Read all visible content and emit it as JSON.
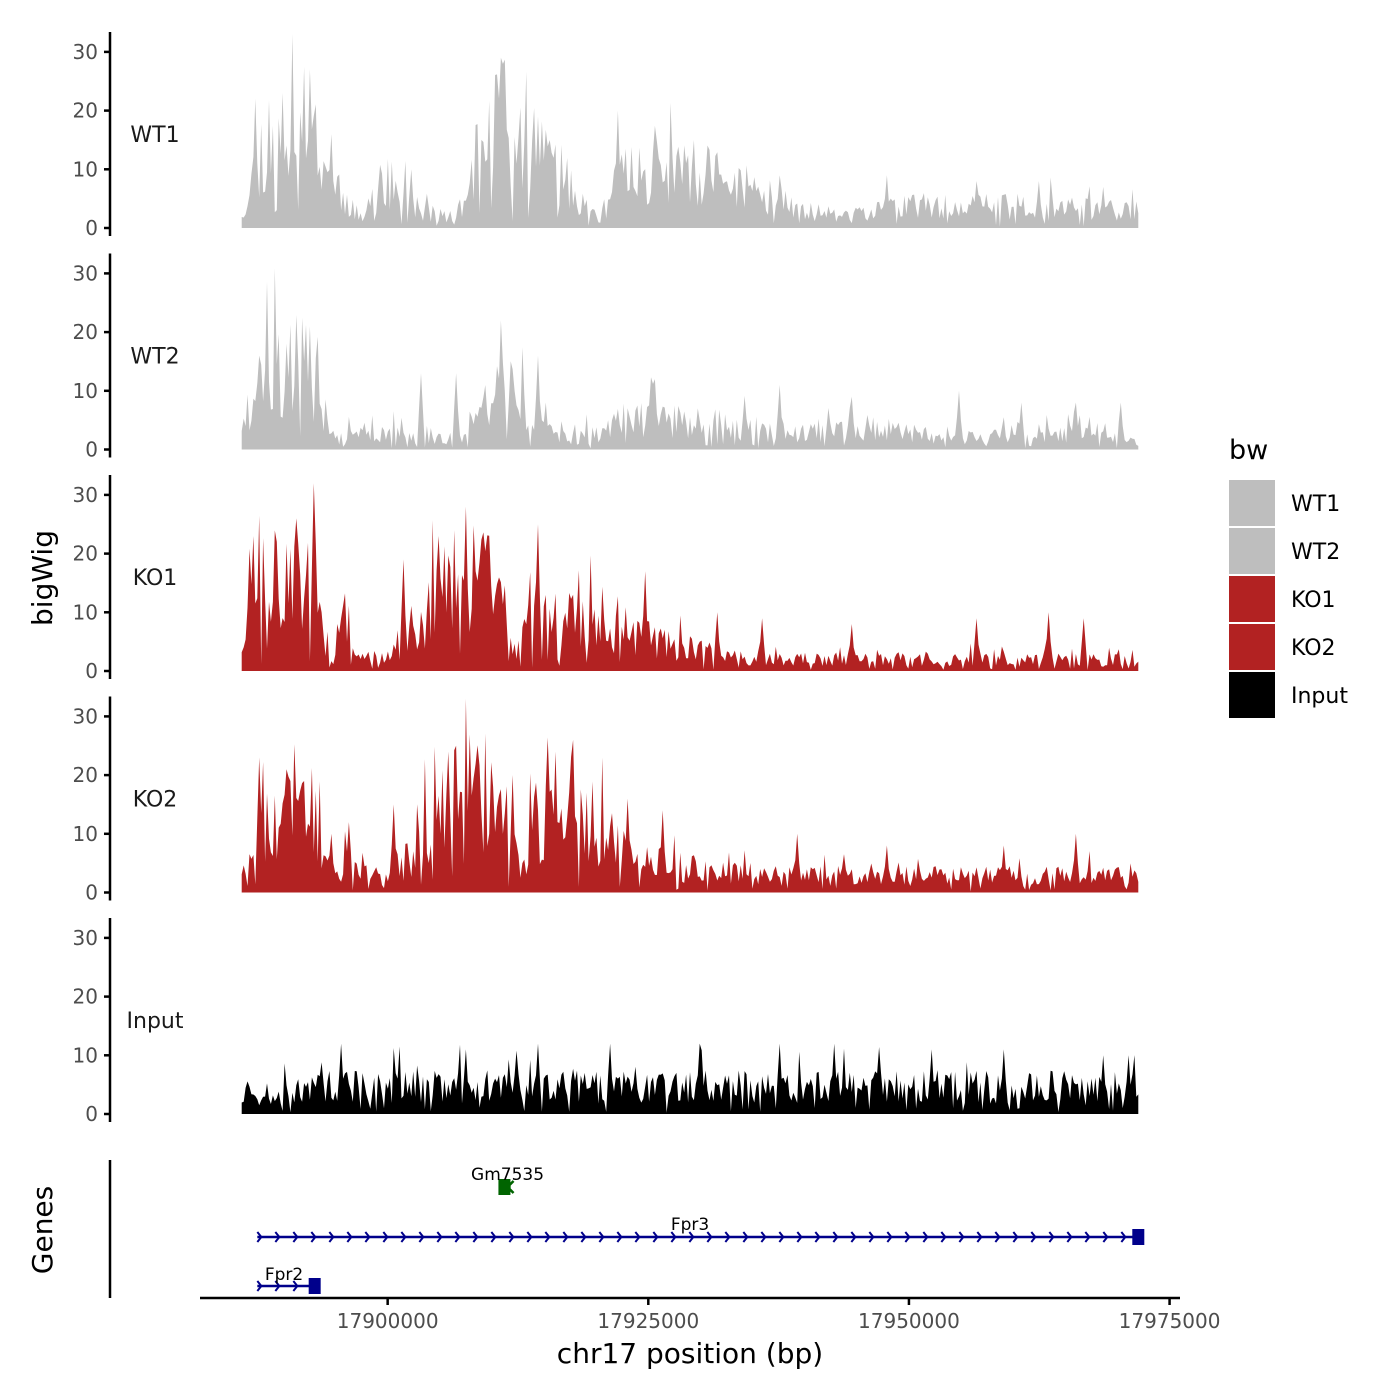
{
  "chart_data": {
    "type": "area",
    "y_axis_title": "bigWig",
    "x_axis_title": "chr17 position (bp)",
    "genes_axis_title": "Genes",
    "x_range": [
      17886000,
      17972000
    ],
    "xlim": [
      17882000,
      17976000
    ],
    "x_ticks": [
      17900000,
      17925000,
      17950000,
      17975000
    ],
    "x_tick_labels": [
      "17900000",
      "17925000",
      "17950000",
      "17975000"
    ],
    "y_range": [
      0,
      33
    ],
    "y_ticks": [
      0,
      10,
      20,
      30
    ],
    "y_tick_labels": [
      "0",
      "10",
      "20",
      "30"
    ],
    "legend": {
      "title": "bw",
      "entries": [
        {
          "label": "WT1",
          "color": "#bebebe"
        },
        {
          "label": "WT2",
          "color": "#bebebe"
        },
        {
          "label": "KO1",
          "color": "#b22222"
        },
        {
          "label": "KO2",
          "color": "#b22222"
        },
        {
          "label": "Input",
          "color": "#000000"
        }
      ]
    },
    "tracks": [
      {
        "name": "WT1",
        "color": "#bebebe",
        "profile": [
          [
            0,
            3
          ],
          [
            0.03,
            18
          ],
          [
            0.05,
            15
          ],
          [
            0.075,
            20
          ],
          [
            0.1,
            10
          ],
          [
            0.12,
            4
          ],
          [
            0.13,
            2
          ],
          [
            0.16,
            9
          ],
          [
            0.2,
            3
          ],
          [
            0.24,
            2
          ],
          [
            0.26,
            12
          ],
          [
            0.29,
            22
          ],
          [
            0.33,
            16
          ],
          [
            0.38,
            4
          ],
          [
            0.4,
            2
          ],
          [
            0.43,
            11
          ],
          [
            0.48,
            10
          ],
          [
            0.52,
            10
          ],
          [
            0.56,
            7
          ],
          [
            0.6,
            5
          ],
          [
            0.67,
            2
          ],
          [
            0.75,
            4
          ],
          [
            0.85,
            4
          ],
          [
            1,
            3
          ]
        ],
        "peaks": [
          [
            0.015,
            22
          ],
          [
            0.045,
            23
          ],
          [
            0.075,
            27
          ],
          [
            0.1,
            16
          ],
          [
            0.19,
            10
          ],
          [
            0.29,
            29
          ],
          [
            0.33,
            19
          ],
          [
            0.42,
            20
          ],
          [
            0.48,
            12
          ],
          [
            0.6,
            9
          ],
          [
            0.72,
            9
          ],
          [
            0.82,
            8
          ],
          [
            0.89,
            8
          ],
          [
            0.96,
            7
          ]
        ],
        "seed": 11
      },
      {
        "name": "WT2",
        "color": "#bebebe",
        "profile": [
          [
            0,
            5
          ],
          [
            0.03,
            13
          ],
          [
            0.07,
            16
          ],
          [
            0.09,
            8
          ],
          [
            0.1,
            2
          ],
          [
            0.16,
            3
          ],
          [
            0.2,
            2
          ],
          [
            0.24,
            2
          ],
          [
            0.27,
            8
          ],
          [
            0.29,
            16
          ],
          [
            0.32,
            6
          ],
          [
            0.34,
            3
          ],
          [
            0.37,
            2
          ],
          [
            0.4,
            3
          ],
          [
            0.43,
            6
          ],
          [
            0.5,
            5
          ],
          [
            0.57,
            4
          ],
          [
            0.6,
            3
          ],
          [
            0.65,
            3
          ],
          [
            0.7,
            4
          ],
          [
            0.75,
            3
          ],
          [
            0.8,
            2
          ],
          [
            0.85,
            3
          ],
          [
            0.9,
            3
          ],
          [
            1,
            2
          ]
        ],
        "peaks": [
          [
            0.02,
            16
          ],
          [
            0.05,
            18
          ],
          [
            0.075,
            21
          ],
          [
            0.2,
            13
          ],
          [
            0.24,
            13
          ],
          [
            0.29,
            22
          ],
          [
            0.33,
            16
          ],
          [
            0.34,
            8
          ],
          [
            0.46,
            12
          ],
          [
            0.6,
            11
          ],
          [
            0.68,
            9
          ],
          [
            0.8,
            10
          ],
          [
            0.87,
            8
          ],
          [
            0.93,
            8
          ],
          [
            0.98,
            8
          ]
        ],
        "seed": 23
      },
      {
        "name": "KO1",
        "color": "#b22222",
        "profile": [
          [
            0,
            5
          ],
          [
            0.02,
            18
          ],
          [
            0.05,
            15
          ],
          [
            0.08,
            18
          ],
          [
            0.09,
            7
          ],
          [
            0.1,
            4
          ],
          [
            0.12,
            6
          ],
          [
            0.14,
            3
          ],
          [
            0.16,
            2
          ],
          [
            0.18,
            5
          ],
          [
            0.2,
            8
          ],
          [
            0.22,
            14
          ],
          [
            0.26,
            19
          ],
          [
            0.29,
            16
          ],
          [
            0.3,
            9
          ],
          [
            0.3,
            2
          ],
          [
            0.32,
            8
          ],
          [
            0.35,
            10
          ],
          [
            0.4,
            8
          ],
          [
            0.45,
            6
          ],
          [
            0.5,
            4
          ],
          [
            0.55,
            3
          ],
          [
            0.6,
            2
          ],
          [
            0.7,
            2
          ],
          [
            0.8,
            2
          ],
          [
            0.9,
            2
          ],
          [
            1,
            2
          ]
        ],
        "peaks": [
          [
            0.012,
            23
          ],
          [
            0.04,
            22
          ],
          [
            0.06,
            26
          ],
          [
            0.08,
            32
          ],
          [
            0.11,
            9
          ],
          [
            0.18,
            19
          ],
          [
            0.22,
            23
          ],
          [
            0.25,
            28
          ],
          [
            0.33,
            25
          ],
          [
            0.37,
            13
          ],
          [
            0.45,
            17
          ],
          [
            0.53,
            10
          ],
          [
            0.58,
            9
          ],
          [
            0.68,
            8
          ],
          [
            0.82,
            9
          ],
          [
            0.9,
            10
          ],
          [
            0.94,
            9
          ]
        ],
        "seed": 37
      },
      {
        "name": "KO2",
        "color": "#b22222",
        "profile": [
          [
            0,
            3
          ],
          [
            0.02,
            15
          ],
          [
            0.05,
            13
          ],
          [
            0.08,
            16
          ],
          [
            0.09,
            6
          ],
          [
            0.1,
            3
          ],
          [
            0.12,
            5
          ],
          [
            0.14,
            3
          ],
          [
            0.16,
            2
          ],
          [
            0.18,
            5
          ],
          [
            0.2,
            9
          ],
          [
            0.23,
            16
          ],
          [
            0.26,
            20
          ],
          [
            0.29,
            15
          ],
          [
            0.31,
            6
          ],
          [
            0.31,
            2
          ],
          [
            0.33,
            13
          ],
          [
            0.36,
            17
          ],
          [
            0.39,
            13
          ],
          [
            0.42,
            8
          ],
          [
            0.47,
            5
          ],
          [
            0.52,
            4
          ],
          [
            0.6,
            3
          ],
          [
            0.7,
            3
          ],
          [
            0.8,
            3
          ],
          [
            0.9,
            3
          ],
          [
            1,
            3
          ]
        ],
        "peaks": [
          [
            0.02,
            23
          ],
          [
            0.05,
            21
          ],
          [
            0.07,
            19
          ],
          [
            0.1,
            10
          ],
          [
            0.12,
            12
          ],
          [
            0.17,
            15
          ],
          [
            0.23,
            24
          ],
          [
            0.24,
            25
          ],
          [
            0.28,
            18
          ],
          [
            0.35,
            24
          ],
          [
            0.37,
            26
          ],
          [
            0.43,
            16
          ],
          [
            0.47,
            14
          ],
          [
            0.62,
            10
          ],
          [
            0.72,
            8
          ],
          [
            0.85,
            8
          ],
          [
            0.93,
            10
          ]
        ],
        "seed": 53
      },
      {
        "name": "Input",
        "color": "#000000",
        "profile": [
          [
            0,
            3
          ],
          [
            0.1,
            5
          ],
          [
            0.2,
            5
          ],
          [
            0.3,
            5
          ],
          [
            0.4,
            5
          ],
          [
            0.5,
            5
          ],
          [
            0.6,
            5
          ],
          [
            0.7,
            5
          ],
          [
            0.8,
            5
          ],
          [
            0.9,
            5
          ],
          [
            1,
            5
          ]
        ],
        "peaks": [
          [
            0.11,
            12
          ],
          [
            0.25,
            11
          ],
          [
            0.33,
            12
          ],
          [
            0.41,
            12
          ],
          [
            0.51,
            12
          ],
          [
            0.6,
            12
          ],
          [
            0.66,
            12
          ],
          [
            0.77,
            11
          ],
          [
            0.85,
            11
          ],
          [
            0.96,
            10
          ],
          [
            0.99,
            10
          ]
        ],
        "seed": 71
      }
    ],
    "genes": [
      {
        "name": "Gm7535",
        "start": 17911800,
        "end": 17911200,
        "strand": "-",
        "row": 1,
        "color": "#006400"
      },
      {
        "name": "Fpr3",
        "start": 17887500,
        "end": 17972000,
        "strand": "+",
        "row": 2,
        "color": "#00008b"
      },
      {
        "name": "Fpr2",
        "start": 17887500,
        "end": 17893000,
        "strand": "+",
        "row": 3,
        "color": "#00008b"
      }
    ]
  }
}
